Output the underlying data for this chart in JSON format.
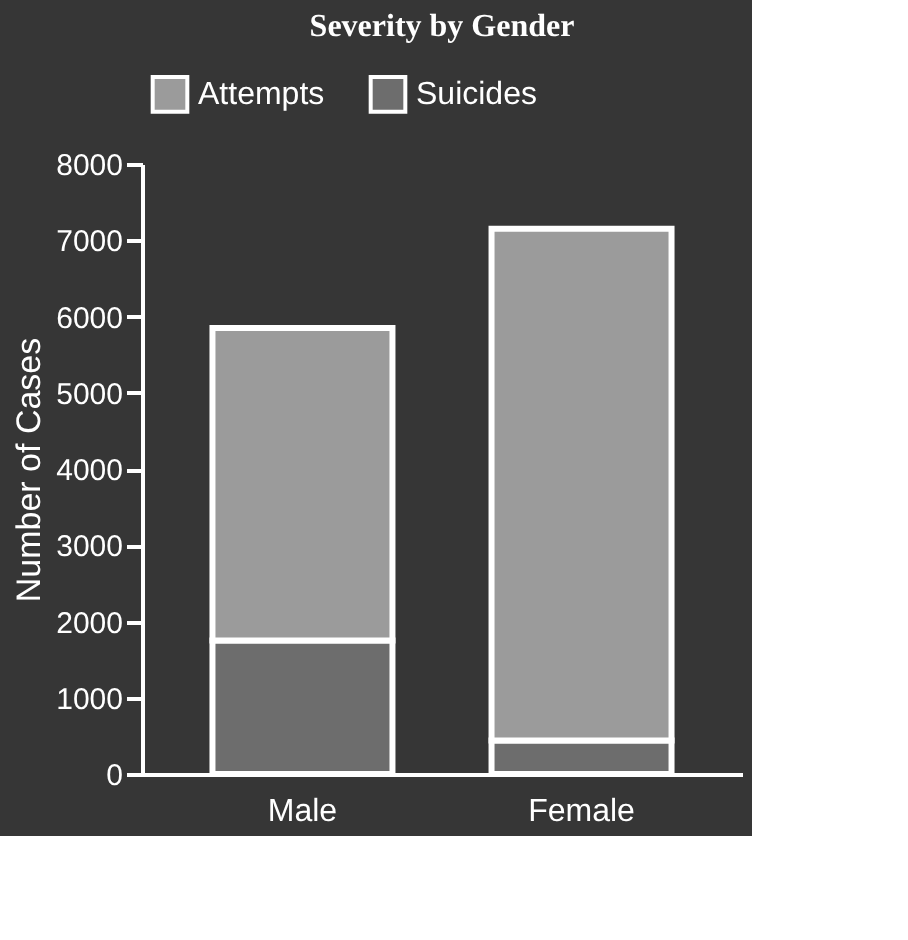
{
  "chart_data": {
    "type": "bar",
    "title": "Severity by Gender",
    "ylabel": "Number of Cases",
    "categories": [
      "Male",
      "Female"
    ],
    "stacked": true,
    "legend": "top",
    "series": [
      {
        "name": "Suicides",
        "color": "#6d6d6d",
        "values": [
          1750,
          440
        ]
      },
      {
        "name": "Attempts",
        "color": "#9b9b9b",
        "values": [
          4100,
          6710
        ]
      }
    ],
    "ylim": [
      0,
      8000
    ],
    "yticks": [
      0,
      1000,
      2000,
      3000,
      4000,
      5000,
      6000,
      7000,
      8000
    ],
    "grid": false
  }
}
